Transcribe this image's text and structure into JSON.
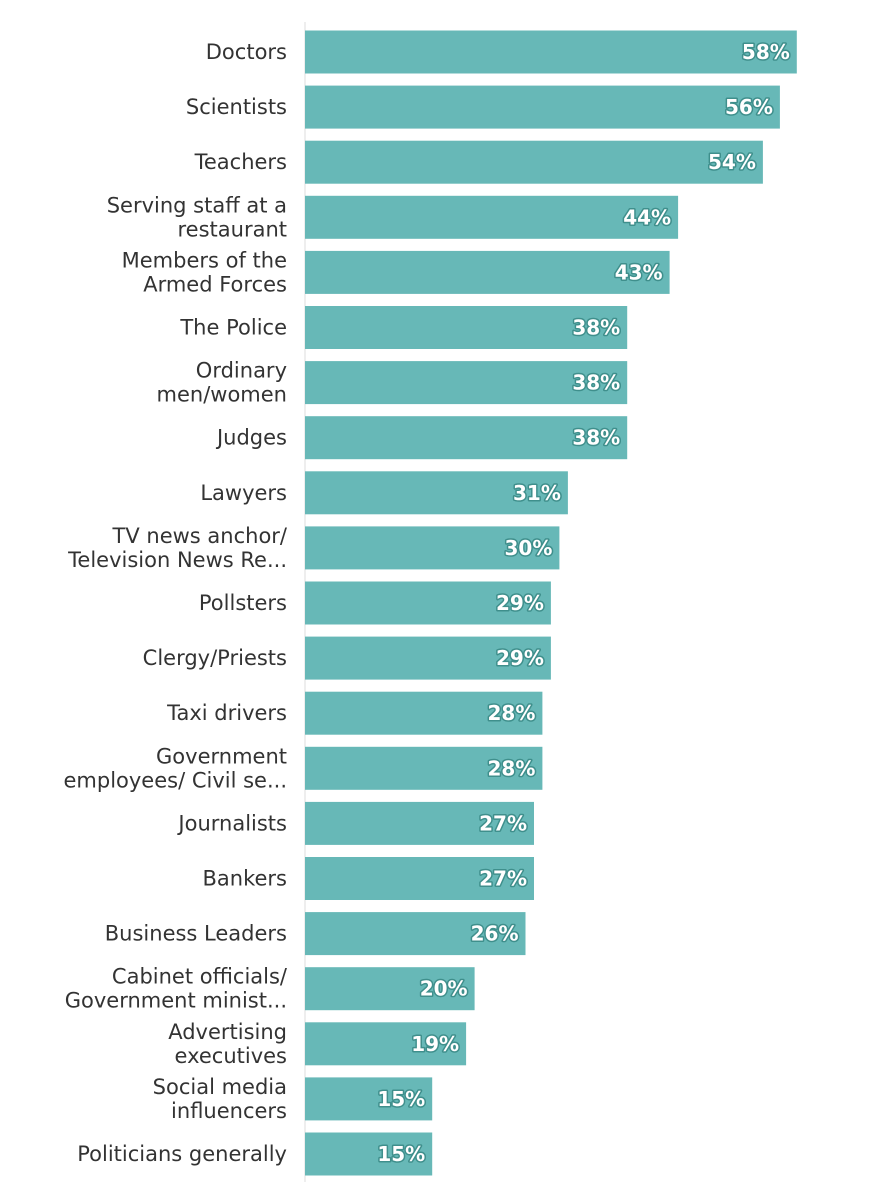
{
  "chart_data": {
    "type": "bar",
    "orientation": "horizontal",
    "title": "",
    "xlabel": "",
    "ylabel": "",
    "xlim": [
      0,
      60
    ],
    "grid": false,
    "value_suffix": "%",
    "bar_color": "#67b8b7",
    "categories": [
      [
        "Doctors"
      ],
      [
        "Scientists"
      ],
      [
        "Teachers"
      ],
      [
        "Serving staff at a",
        "restaurant"
      ],
      [
        "Members of the",
        "Armed Forces"
      ],
      [
        "The Police"
      ],
      [
        "Ordinary",
        "men/women"
      ],
      [
        "Judges"
      ],
      [
        "Lawyers"
      ],
      [
        "TV news anchor/",
        "Television News Re..."
      ],
      [
        "Pollsters"
      ],
      [
        "Clergy/Priests"
      ],
      [
        "Taxi drivers"
      ],
      [
        "Government",
        "employees/ Civil se..."
      ],
      [
        "Journalists"
      ],
      [
        "Bankers"
      ],
      [
        "Business Leaders"
      ],
      [
        "Cabinet officials/",
        "Government minist..."
      ],
      [
        "Advertising",
        "executives"
      ],
      [
        "Social media",
        "influencers"
      ],
      [
        "Politicians generally"
      ]
    ],
    "values": [
      58,
      56,
      54,
      44,
      43,
      38,
      38,
      38,
      31,
      30,
      29,
      29,
      28,
      28,
      27,
      27,
      26,
      20,
      19,
      15,
      15
    ]
  }
}
